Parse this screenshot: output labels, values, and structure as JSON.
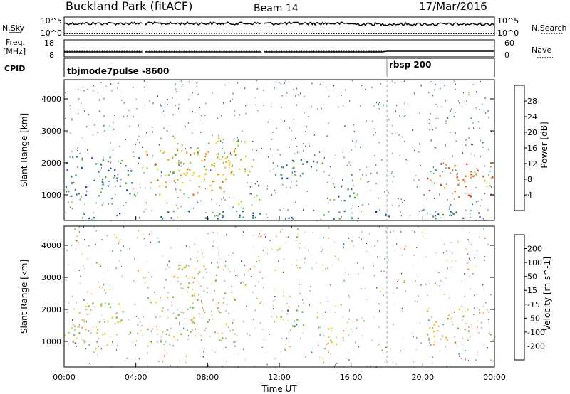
{
  "header": {
    "title": "Buckland Park (fitACF)",
    "beam": "Beam 14",
    "date": "17/Mar/2016"
  },
  "strips": {
    "nsky_label": "N.Sky",
    "nsearch_label": "N.Search",
    "nsky_ticks": [
      "10^5",
      "10^0"
    ],
    "nsearch_ticks": [
      "10^5",
      "10^0"
    ],
    "freq_label_1": "Freq.",
    "freq_label_2": "[MHz]",
    "freq_ticks": [
      "18",
      "8"
    ],
    "nave_label": "Nave",
    "nave_ticks": [
      "60",
      "0"
    ],
    "cpid_label": "CPID",
    "cpid_segments": [
      {
        "label": "tbjmode7pulse -8600",
        "start_hour": 0.0
      },
      {
        "label": "rbsp 200",
        "start_hour": 18.0
      }
    ]
  },
  "colors": {
    "power_scale": [
      "#0b22e0",
      "#2b4fb0",
      "#2e7b63",
      "#4aa44a",
      "#9ccc3c",
      "#f0d028",
      "#f0a01c",
      "#f06a14",
      "#e02b10"
    ],
    "velocity_scale": [
      "#1c2fa6",
      "#2c5fb0",
      "#2e7a3c",
      "#74c040",
      "#c8c8c0",
      "#f0c030",
      "#f09018",
      "#f05010",
      "#e01010"
    ]
  },
  "chart_data": [
    {
      "type": "heatmap",
      "panel": "power",
      "ylabel": "Slant Range [km]",
      "yticks": [
        1000,
        2000,
        3000,
        4000
      ],
      "ylim": [
        200,
        4600
      ],
      "xlim": [
        0,
        24
      ],
      "colorbar_label": "Power [dB]",
      "colorbar_ticks": [
        "4",
        "8",
        "12",
        "16",
        "20",
        "24",
        "28"
      ],
      "colorbar_range": [
        0,
        32
      ],
      "regions": [
        {
          "x": [
            0.0,
            4.3
          ],
          "y": [
            900,
            2200
          ],
          "value": 9
        },
        {
          "x": [
            4.5,
            9.5
          ],
          "y": [
            1000,
            2400
          ],
          "value": 22
        },
        {
          "x": [
            6.0,
            10.8
          ],
          "y": [
            1600,
            2800
          ],
          "value": 18
        },
        {
          "x": [
            9.6,
            11.0
          ],
          "y": [
            700,
            1000
          ],
          "value": 20
        },
        {
          "x": [
            11.5,
            14.5
          ],
          "y": [
            1400,
            2100
          ],
          "value": 10
        },
        {
          "x": [
            15.0,
            16.5
          ],
          "y": [
            800,
            1700
          ],
          "value": 11
        },
        {
          "x": [
            20.2,
            24.0
          ],
          "y": [
            900,
            2000
          ],
          "value": 26
        },
        {
          "x": [
            0.0,
            24.0
          ],
          "y": [
            250,
            500
          ],
          "value": 8
        }
      ]
    },
    {
      "type": "heatmap",
      "panel": "velocity",
      "xlabel": "Time UT",
      "ylabel": "Slant Range [km]",
      "yticks": [
        1000,
        2000,
        3000,
        4000
      ],
      "ylim": [
        200,
        4600
      ],
      "xlim": [
        0,
        24
      ],
      "xticks": [
        "00:00",
        "04:00",
        "08:00",
        "12:00",
        "16:00",
        "20:00",
        "00:00"
      ],
      "colorbar_label": "Velocity [m s^-1]",
      "colorbar_ticks": [
        "200",
        "100",
        "50",
        "15",
        "-15",
        "-50",
        "-100",
        "-200"
      ],
      "colorbar_range": [
        -250,
        250
      ],
      "regions": [
        {
          "x": [
            0.0,
            4.3
          ],
          "y": [
            800,
            2200
          ],
          "value": 0
        },
        {
          "x": [
            4.5,
            9.5
          ],
          "y": [
            900,
            2500
          ],
          "value": 5
        },
        {
          "x": [
            6.0,
            10.8
          ],
          "y": [
            2500,
            3400
          ],
          "value": 0
        },
        {
          "x": [
            11.8,
            13.5
          ],
          "y": [
            1400,
            2100
          ],
          "value": 60
        },
        {
          "x": [
            14.5,
            16.0
          ],
          "y": [
            900,
            1500
          ],
          "value": -20
        },
        {
          "x": [
            20.2,
            24.0
          ],
          "y": [
            900,
            2100
          ],
          "value": 0
        }
      ]
    }
  ]
}
